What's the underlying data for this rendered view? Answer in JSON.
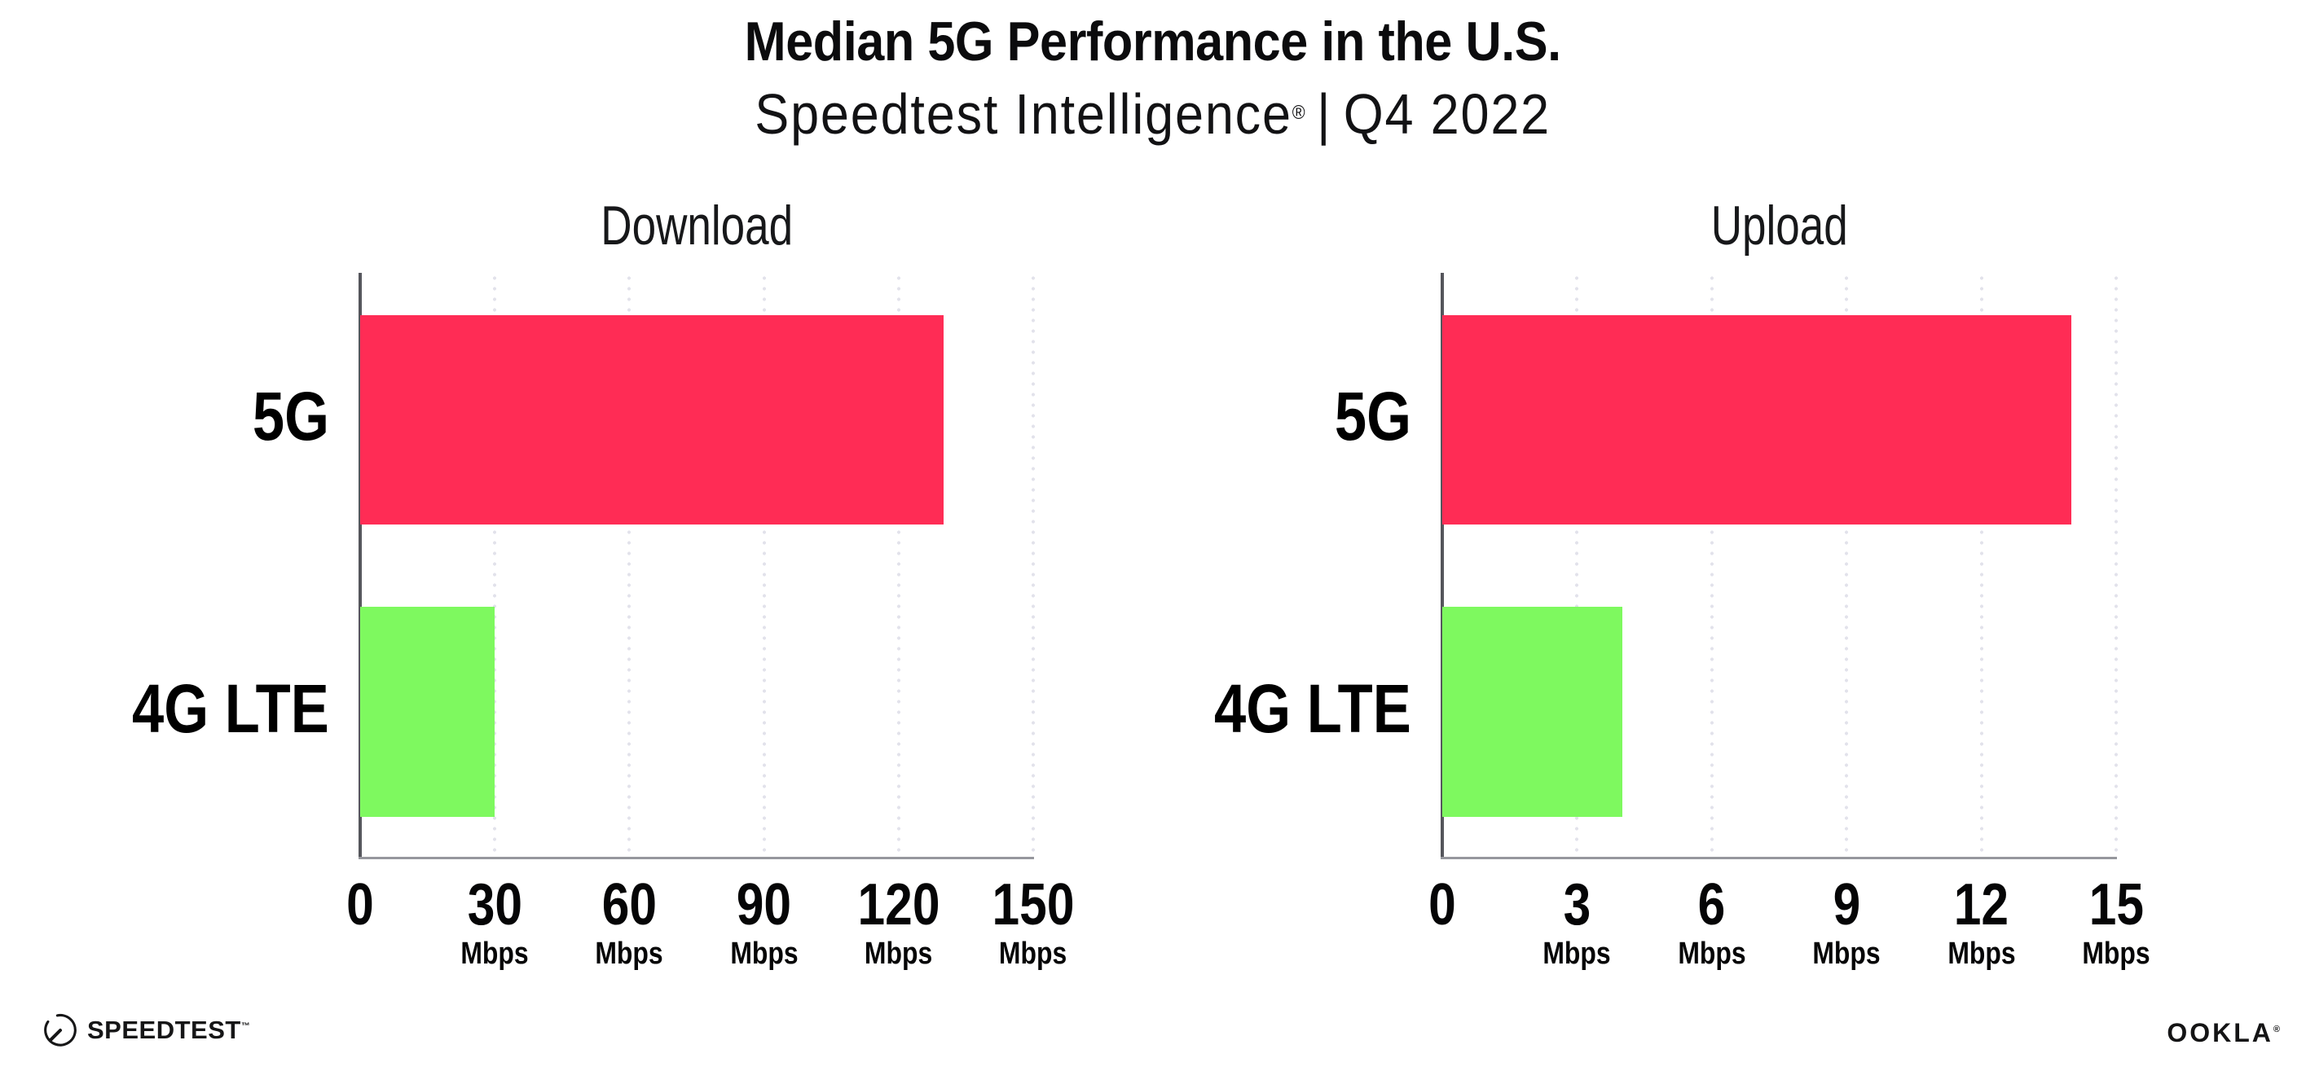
{
  "header": {
    "title": "Median 5G Performance in the U.S.",
    "subtitle_brand": "Speedtest Intelligence",
    "subtitle_reg": "®",
    "subtitle_sep": "|",
    "subtitle_period": "Q4 2022"
  },
  "footer": {
    "speedtest_wordmark": "SPEEDTEST",
    "speedtest_mark": "™",
    "speedtest_icon": "speedtest-gauge-icon",
    "ookla_wordmark": "OOKLA",
    "ookla_mark": "®"
  },
  "colors": {
    "bar_5g": "#ff2c55",
    "bar_4g_lte": "#7ef95f",
    "gridline": "#e2e2eb",
    "y_axis": "#55565c",
    "x_axis": "#96979d",
    "text": "#0d0d0f"
  },
  "chart_data": [
    {
      "type": "bar",
      "orientation": "horizontal",
      "title": "Download",
      "categories": [
        "5G",
        "4G LTE"
      ],
      "values": [
        130,
        30
      ],
      "unit": "Mbps",
      "xlim": [
        0,
        150
      ],
      "xticks": [
        0,
        30,
        60,
        90,
        120,
        150
      ],
      "tick_unit": "Mbps",
      "bar_colors": [
        "#ff2c55",
        "#7ef95f"
      ],
      "grid": "dotted-vertical",
      "legend": "none"
    },
    {
      "type": "bar",
      "orientation": "horizontal",
      "title": "Upload",
      "categories": [
        "5G",
        "4G LTE"
      ],
      "values": [
        14,
        4
      ],
      "unit": "Mbps",
      "xlim": [
        0,
        15
      ],
      "xticks": [
        0,
        3,
        6,
        9,
        12,
        15
      ],
      "tick_unit": "Mbps",
      "bar_colors": [
        "#ff2c55",
        "#7ef95f"
      ],
      "grid": "dotted-vertical",
      "legend": "none"
    }
  ]
}
